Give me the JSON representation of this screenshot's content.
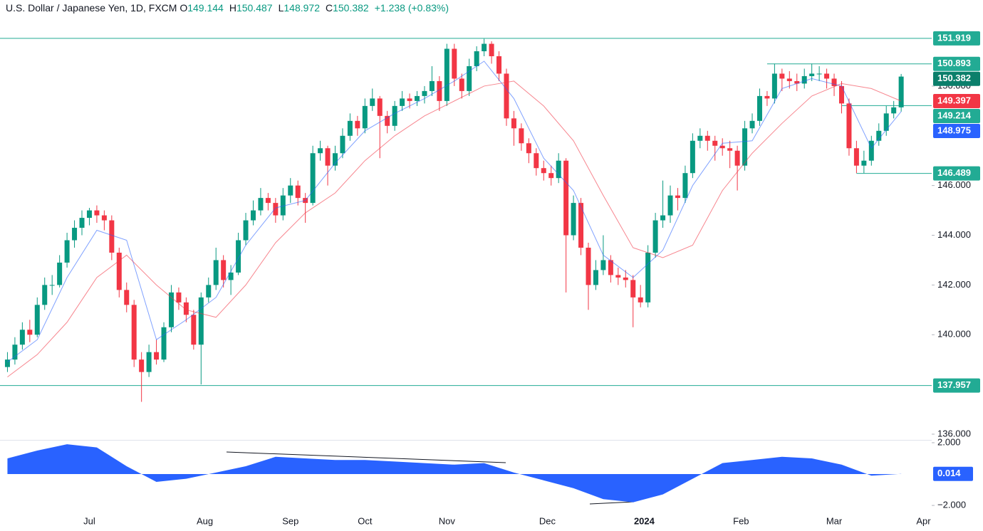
{
  "header": {
    "symbol": "U.S. Dollar / Japanese Yen, 1D, FXCM",
    "fields": [
      {
        "key": "O",
        "value": "149.144"
      },
      {
        "key": "H",
        "value": "150.487"
      },
      {
        "key": "L",
        "value": "148.972"
      },
      {
        "key": "C",
        "value": "150.382"
      }
    ],
    "change": "+1.238 (+0.83%)"
  },
  "chart_data": [
    {
      "type": "candlestick",
      "up_color": "#089981",
      "down_color": "#f23645",
      "xlim": [
        -1,
        124.1
      ],
      "ylim": [
        135.77,
        152.66
      ],
      "yticks": [
        {
          "value": 136,
          "label": "136.000"
        },
        {
          "value": 140,
          "label": "140.000"
        },
        {
          "value": 142,
          "label": "142.000"
        },
        {
          "value": 144,
          "label": "144.000"
        },
        {
          "value": 146,
          "label": "146.000"
        },
        {
          "value": 150,
          "label": "150.000"
        }
      ],
      "xticks": [
        {
          "value": 11,
          "label": "Jul"
        },
        {
          "value": 26.5,
          "label": "Aug"
        },
        {
          "value": 38,
          "label": "Sep"
        },
        {
          "value": 48,
          "label": "Oct"
        },
        {
          "value": 59,
          "label": "Nov"
        },
        {
          "value": 72.5,
          "label": "Dec"
        },
        {
          "value": 85.5,
          "label": "2024"
        },
        {
          "value": 98.5,
          "label": "Feb"
        },
        {
          "value": 111,
          "label": "Mar"
        },
        {
          "value": 123,
          "label": "Apr"
        }
      ],
      "candles": [
        [
          138.7,
          139.3,
          138.5,
          139.0
        ],
        [
          139.0,
          139.9,
          138.8,
          139.6
        ],
        [
          139.6,
          140.5,
          139.4,
          140.2
        ],
        [
          140.2,
          140.6,
          139.7,
          140.0
        ],
        [
          140.0,
          141.5,
          139.9,
          141.2
        ],
        [
          141.2,
          142.3,
          141.0,
          142.0
        ],
        [
          142.0,
          142.4,
          141.6,
          142.0
        ],
        [
          142.0,
          143.2,
          141.9,
          142.9
        ],
        [
          142.9,
          144.1,
          142.7,
          143.8
        ],
        [
          143.8,
          144.6,
          143.5,
          144.3
        ],
        [
          144.3,
          145.0,
          144.0,
          144.7
        ],
        [
          144.7,
          145.1,
          144.4,
          145.0
        ],
        [
          145.0,
          145.2,
          144.5,
          144.8
        ],
        [
          144.8,
          145.0,
          144.2,
          144.6
        ],
        [
          144.6,
          144.8,
          143.0,
          143.3
        ],
        [
          143.3,
          143.5,
          141.5,
          141.8
        ],
        [
          141.8,
          142.1,
          140.9,
          141.2
        ],
        [
          141.2,
          141.4,
          138.7,
          139.0
        ],
        [
          139.0,
          139.3,
          137.3,
          138.5
        ],
        [
          138.5,
          139.6,
          138.3,
          139.3
        ],
        [
          139.3,
          139.8,
          138.8,
          139.0
        ],
        [
          139.0,
          140.5,
          138.9,
          140.3
        ],
        [
          140.3,
          142.0,
          140.1,
          141.7
        ],
        [
          141.7,
          141.9,
          141.0,
          141.3
        ],
        [
          141.3,
          141.5,
          140.5,
          140.8
        ],
        [
          140.8,
          141.0,
          139.4,
          139.6
        ],
        [
          139.6,
          141.7,
          138.0,
          141.5
        ],
        [
          141.5,
          142.3,
          141.3,
          142.0
        ],
        [
          142.0,
          143.5,
          141.8,
          143.0
        ],
        [
          143.0,
          143.2,
          141.9,
          142.2
        ],
        [
          142.2,
          142.8,
          141.6,
          142.5
        ],
        [
          142.5,
          144.1,
          142.4,
          143.8
        ],
        [
          143.8,
          144.9,
          143.6,
          144.6
        ],
        [
          144.6,
          145.4,
          144.4,
          145.0
        ],
        [
          145.0,
          145.9,
          144.8,
          145.5
        ],
        [
          145.5,
          145.7,
          145.0,
          145.3
        ],
        [
          145.3,
          145.5,
          144.5,
          144.8
        ],
        [
          144.8,
          145.9,
          144.6,
          145.6
        ],
        [
          145.6,
          146.3,
          145.3,
          146.0
        ],
        [
          146.0,
          146.2,
          145.2,
          145.5
        ],
        [
          145.5,
          145.7,
          144.5,
          145.3
        ],
        [
          145.3,
          147.6,
          145.2,
          147.3
        ],
        [
          147.3,
          147.8,
          147.0,
          147.5
        ],
        [
          147.5,
          147.6,
          146.0,
          146.8
        ],
        [
          146.8,
          147.6,
          146.6,
          147.3
        ],
        [
          147.3,
          148.3,
          147.1,
          148.0
        ],
        [
          148.0,
          148.9,
          147.8,
          148.6
        ],
        [
          148.6,
          148.8,
          148.0,
          148.3
        ],
        [
          148.3,
          149.5,
          148.1,
          149.2
        ],
        [
          149.2,
          149.9,
          149.0,
          149.5
        ],
        [
          149.5,
          149.6,
          147.1,
          148.8
        ],
        [
          148.8,
          149.0,
          148.1,
          148.4
        ],
        [
          148.4,
          149.4,
          148.2,
          149.2
        ],
        [
          149.2,
          149.8,
          149.0,
          149.5
        ],
        [
          149.5,
          149.7,
          149.1,
          149.4
        ],
        [
          149.4,
          149.8,
          149.2,
          149.6
        ],
        [
          149.6,
          150.0,
          149.3,
          149.8
        ],
        [
          149.8,
          150.8,
          149.6,
          150.2
        ],
        [
          150.2,
          150.4,
          149.0,
          149.4
        ],
        [
          149.4,
          151.7,
          149.2,
          151.5
        ],
        [
          151.5,
          151.7,
          150.0,
          150.3
        ],
        [
          150.3,
          150.5,
          149.5,
          149.8
        ],
        [
          149.8,
          151.1,
          149.6,
          150.8
        ],
        [
          150.8,
          151.6,
          150.6,
          151.4
        ],
        [
          151.4,
          151.9,
          151.2,
          151.7
        ],
        [
          151.7,
          151.8,
          150.9,
          151.2
        ],
        [
          151.2,
          151.4,
          150.2,
          150.5
        ],
        [
          150.5,
          150.7,
          148.4,
          148.7
        ],
        [
          148.7,
          149.0,
          147.6,
          148.3
        ],
        [
          148.3,
          148.5,
          147.4,
          147.7
        ],
        [
          147.7,
          147.9,
          146.9,
          147.3
        ],
        [
          147.3,
          147.5,
          146.4,
          146.7
        ],
        [
          146.7,
          147.0,
          146.2,
          146.5
        ],
        [
          146.5,
          146.8,
          146.0,
          146.3
        ],
        [
          146.3,
          147.3,
          146.1,
          147.0
        ],
        [
          147.0,
          147.1,
          141.7,
          144.0
        ],
        [
          144.0,
          145.6,
          143.8,
          145.3
        ],
        [
          145.3,
          145.5,
          143.2,
          143.5
        ],
        [
          143.5,
          143.7,
          141.0,
          142.0
        ],
        [
          142.0,
          143.0,
          141.8,
          142.6
        ],
        [
          142.6,
          144.0,
          142.4,
          143.0
        ],
        [
          143.0,
          143.2,
          142.1,
          142.4
        ],
        [
          142.4,
          142.7,
          142.0,
          142.3
        ],
        [
          142.3,
          142.6,
          141.9,
          142.2
        ],
        [
          142.2,
          142.4,
          140.3,
          141.5
        ],
        [
          141.5,
          142.0,
          141.1,
          141.3
        ],
        [
          141.3,
          143.6,
          141.1,
          143.3
        ],
        [
          143.3,
          144.9,
          143.1,
          144.6
        ],
        [
          144.6,
          146.2,
          144.3,
          144.8
        ],
        [
          144.8,
          146.0,
          144.5,
          145.6
        ],
        [
          145.6,
          145.9,
          145.0,
          145.5
        ],
        [
          145.5,
          146.8,
          145.3,
          146.5
        ],
        [
          146.5,
          148.1,
          146.3,
          147.8
        ],
        [
          147.8,
          148.3,
          147.5,
          148.0
        ],
        [
          148.0,
          148.2,
          147.4,
          147.8
        ],
        [
          147.8,
          148.0,
          147.0,
          147.6
        ],
        [
          147.6,
          147.9,
          147.2,
          147.5
        ],
        [
          147.5,
          147.8,
          146.7,
          147.4
        ],
        [
          147.4,
          147.6,
          145.8,
          146.8
        ],
        [
          146.8,
          148.6,
          146.6,
          148.3
        ],
        [
          148.3,
          148.9,
          148.1,
          148.6
        ],
        [
          148.6,
          149.9,
          148.4,
          149.6
        ],
        [
          149.6,
          149.8,
          149.2,
          149.5
        ],
        [
          149.5,
          150.9,
          149.3,
          150.5
        ],
        [
          150.5,
          150.7,
          149.8,
          150.3
        ],
        [
          150.3,
          150.6,
          149.9,
          150.2
        ],
        [
          150.2,
          150.5,
          149.8,
          150.1
        ],
        [
          150.1,
          150.7,
          149.9,
          150.4
        ],
        [
          150.4,
          150.9,
          150.2,
          150.5
        ],
        [
          150.5,
          150.8,
          150.2,
          150.5
        ],
        [
          150.5,
          150.7,
          149.9,
          150.3
        ],
        [
          150.3,
          150.5,
          149.6,
          150.0
        ],
        [
          150.0,
          150.2,
          148.9,
          149.3
        ],
        [
          149.3,
          149.5,
          147.2,
          147.5
        ],
        [
          147.5,
          147.8,
          146.5,
          146.8
        ],
        [
          146.8,
          147.4,
          146.5,
          147.0
        ],
        [
          147.0,
          148.0,
          146.8,
          147.8
        ],
        [
          147.8,
          148.5,
          147.6,
          148.2
        ],
        [
          148.2,
          149.2,
          148.0,
          148.9
        ],
        [
          148.9,
          149.4,
          148.7,
          149.144
        ],
        [
          149.144,
          150.487,
          148.972,
          150.382
        ]
      ],
      "last_color": "#0b7f6b",
      "series": [
        {
          "color": "#2962ff",
          "x": [
            0,
            4,
            8,
            12,
            16,
            20,
            24,
            28,
            32,
            36,
            40,
            44,
            48,
            52,
            56,
            60,
            64,
            68,
            72,
            76,
            80,
            84,
            88,
            92,
            96,
            100,
            104,
            108,
            112,
            116,
            120
          ],
          "values": [
            138.9,
            139.8,
            142.3,
            144.2,
            143.8,
            139.8,
            140.6,
            141.5,
            143.6,
            145.1,
            145.4,
            146.9,
            148.2,
            148.9,
            149.5,
            150.2,
            151.0,
            149.5,
            147.1,
            145.8,
            143.2,
            142.3,
            143.4,
            146.0,
            147.7,
            147.8,
            149.9,
            150.3,
            150.0,
            147.5,
            148.975
          ]
        },
        {
          "color": "#f23645",
          "x": [
            0,
            4,
            8,
            12,
            16,
            20,
            24,
            28,
            32,
            36,
            40,
            44,
            48,
            52,
            56,
            60,
            64,
            68,
            72,
            76,
            80,
            84,
            88,
            92,
            96,
            100,
            104,
            108,
            112,
            116,
            120
          ],
          "values": [
            138.3,
            139.2,
            140.5,
            142.3,
            143.2,
            142.0,
            141.0,
            140.7,
            142.0,
            143.7,
            144.9,
            145.7,
            147.0,
            148.0,
            148.8,
            149.4,
            150.0,
            150.2,
            149.2,
            147.8,
            145.6,
            143.5,
            143.1,
            143.6,
            145.8,
            147.3,
            148.5,
            149.6,
            150.1,
            149.9,
            149.397
          ]
        }
      ],
      "levels": [
        {
          "value": 151.919,
          "from": -1,
          "color": "#22ab94"
        },
        {
          "value": 150.893,
          "from": 102,
          "color": "#22ab94"
        },
        {
          "value": 149.214,
          "from": 112,
          "color": "#22ab94"
        },
        {
          "value": 146.489,
          "from": 114,
          "color": "#22ab94"
        },
        {
          "value": 137.957,
          "from": -1,
          "color": "#22ab94"
        }
      ]
    },
    {
      "type": "area",
      "color": "#2962ff",
      "xlim": [
        -1,
        124.1
      ],
      "ylim": [
        -2.36,
        2.18
      ],
      "yticks": [
        {
          "value": 2,
          "label": "2.000"
        },
        {
          "value": -2,
          "label": "−2.000"
        }
      ],
      "x": [
        0,
        4,
        8,
        12,
        16,
        20,
        24,
        28,
        32,
        36,
        40,
        44,
        48,
        52,
        56,
        60,
        64,
        68,
        72,
        76,
        80,
        84,
        88,
        92,
        96,
        100,
        104,
        108,
        112,
        116,
        120
      ],
      "values": [
        1.0,
        1.5,
        1.9,
        1.7,
        0.5,
        -0.5,
        -0.3,
        0.1,
        0.5,
        1.1,
        1.0,
        0.9,
        0.9,
        0.8,
        0.7,
        0.6,
        0.7,
        0.1,
        -0.4,
        -0.9,
        -1.6,
        -1.8,
        -1.3,
        -0.3,
        0.7,
        0.9,
        1.1,
        1.0,
        0.6,
        -0.1,
        0.014
      ]
    }
  ]
}
